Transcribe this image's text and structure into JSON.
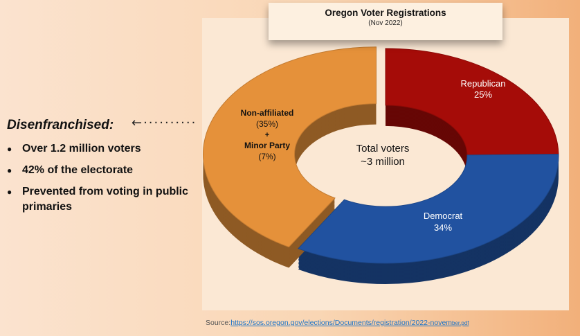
{
  "chart_data": {
    "type": "pie",
    "title": "Oregon Voter Registrations",
    "subtitle": "(Nov 2022)",
    "center_label_line1": "Total voters",
    "center_label_line2": "~3 million",
    "slices": [
      {
        "label": "Republican",
        "value": 25,
        "value_label": "25%",
        "color": "#a50c08"
      },
      {
        "label": "Democrat",
        "value": 34,
        "value_label": "34%",
        "color": "#2152a0"
      },
      {
        "label": "Non-affiliated",
        "value": 35,
        "value_label": "(35%)",
        "color": "#e5913a"
      },
      {
        "label": "Minor Party",
        "value": 7,
        "value_label": "(7%)",
        "color": "#e5913a"
      }
    ],
    "combined_label": {
      "line1": "Non-affiliated",
      "line2": "(35%)",
      "plus": "+",
      "line3": "Minor Party",
      "line4": "(7%)"
    }
  },
  "sidebar": {
    "heading": "Disenfranchised:",
    "arrow": "←··········",
    "bullets": [
      "Over 1.2 million voters",
      "42% of the electorate",
      "Prevented from voting in public primaries"
    ]
  },
  "source": {
    "prefix": "Source:",
    "link": "https://sos.oregon.gov/elections/Documents/registration/2022-novem",
    "link_tail": "ber.pdf"
  }
}
